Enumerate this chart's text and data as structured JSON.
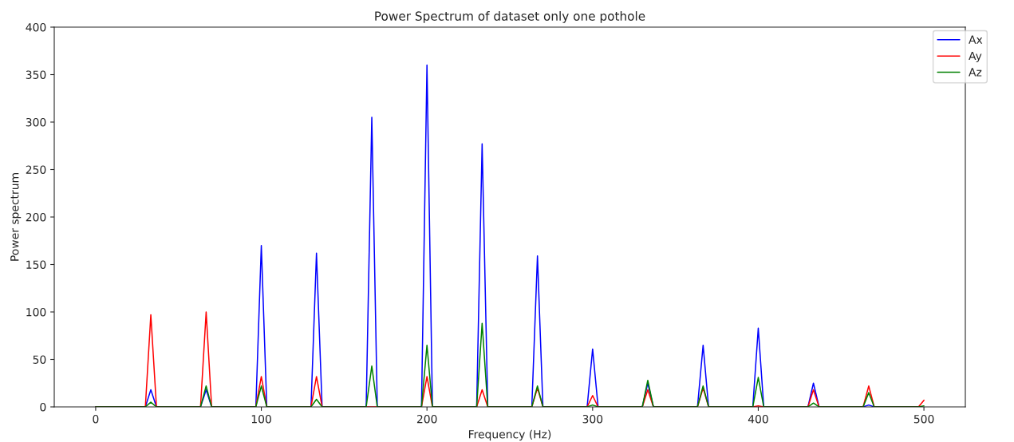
{
  "chart_data": {
    "type": "line",
    "title": "Power Spectrum of dataset only one pothole",
    "xlabel": "Frequency (Hz)",
    "ylabel": "Power spectrum",
    "x": [
      0,
      30,
      33.3,
      36.7,
      63.3,
      66.7,
      70,
      96.7,
      100,
      103.3,
      130,
      133.3,
      136.7,
      163.3,
      166.7,
      170,
      196.7,
      200,
      203.3,
      230,
      233.3,
      236.7,
      263.3,
      266.7,
      270,
      296.7,
      300,
      303.3,
      330,
      333.3,
      336.7,
      363.3,
      366.7,
      370,
      396.7,
      400,
      403.3,
      430,
      433.3,
      436.7,
      463.3,
      466.7,
      470,
      496.7,
      500
    ],
    "series": [
      {
        "name": "Ax",
        "color": "#0000ff",
        "values": [
          0,
          0,
          18,
          0,
          0,
          18,
          0,
          0,
          170,
          0,
          0,
          162,
          0,
          0,
          305,
          0,
          0,
          360,
          0,
          0,
          277,
          0,
          0,
          159,
          0,
          0,
          61,
          0,
          0,
          25,
          0,
          0,
          65,
          0,
          0,
          83,
          0,
          0,
          25,
          0,
          0,
          2,
          0,
          0,
          null
        ]
      },
      {
        "name": "Ay",
        "color": "#ff0000",
        "values": [
          0,
          0,
          97,
          0,
          0,
          100,
          0,
          0,
          32,
          0,
          0,
          32,
          0,
          0,
          null,
          0,
          0,
          32,
          0,
          0,
          18,
          0,
          0,
          20,
          0,
          0,
          12,
          0,
          0,
          18,
          0,
          0,
          20,
          0,
          0,
          1,
          0,
          0,
          18,
          0,
          0,
          22,
          0,
          0,
          7
        ]
      },
      {
        "name": "Az",
        "color": "#008000",
        "values": [
          0,
          0,
          5,
          0,
          0,
          22,
          0,
          0,
          22,
          0,
          0,
          8,
          0,
          0,
          43,
          0,
          0,
          65,
          0,
          0,
          88,
          0,
          0,
          22,
          0,
          0,
          2,
          0,
          0,
          28,
          0,
          0,
          22,
          0,
          0,
          31,
          0,
          0,
          4,
          0,
          0,
          15,
          0,
          0,
          1
        ]
      }
    ],
    "xlim": [
      -25,
      525
    ],
    "ylim": [
      0,
      400
    ],
    "xticks": [
      0,
      100,
      200,
      300,
      400,
      500
    ],
    "yticks": [
      0,
      50,
      100,
      150,
      200,
      250,
      300,
      350,
      400
    ],
    "grid": false,
    "legend": "top right"
  }
}
